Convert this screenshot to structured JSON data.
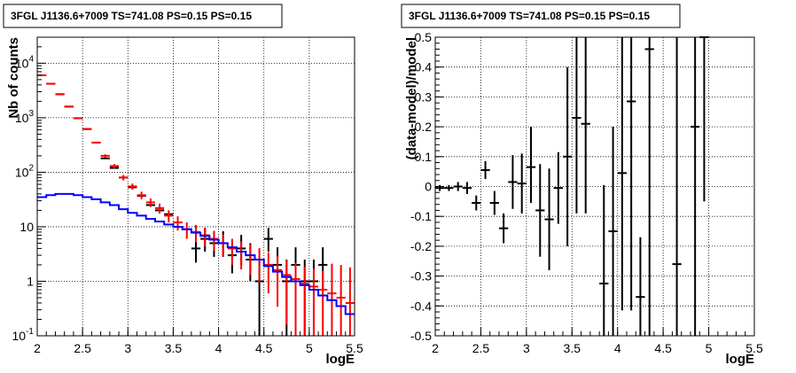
{
  "chart_data": [
    {
      "type": "scatter",
      "title": "3FGL J1136.6+7009 TS=741.08 PS=0.15 PS=0.15",
      "xlabel": "logE",
      "ylabel": "Nb of counts",
      "xlim": [
        2,
        5.5
      ],
      "ylim": [
        0.1,
        30000
      ],
      "yscale": "log",
      "grid": true,
      "x_ticks": [
        "2",
        "2.5",
        "3",
        "3.5",
        "4",
        "4.5",
        "5",
        "5.5"
      ],
      "y_ticks": [
        "10^{-1}",
        "1",
        "10",
        "10^{2}",
        "10^{3}",
        "10^{4}"
      ],
      "colors": {
        "data": "#000000",
        "model": "#ff0000",
        "background": "#0000ff"
      },
      "series": [
        {
          "key": "data",
          "x": [
            2.05,
            2.15,
            2.25,
            2.35,
            2.45,
            2.55,
            2.65,
            2.75,
            2.85,
            2.95,
            3.05,
            3.15,
            3.25,
            3.35,
            3.45,
            3.55,
            3.65,
            3.75,
            3.85,
            3.95,
            4.05,
            4.15,
            4.25,
            4.35,
            4.45,
            4.55,
            4.65,
            4.75,
            4.85,
            4.95,
            5.05,
            5.15,
            5.25
          ],
          "y": [
            6000,
            4200,
            2700,
            1600,
            980,
            620,
            350,
            180,
            120,
            80,
            53,
            37,
            25,
            20,
            17,
            12,
            9,
            4,
            6,
            5,
            5,
            3,
            4,
            2.5,
            1,
            6,
            2,
            1,
            2,
            1,
            1,
            2,
            0
          ],
          "err_low": [
            0,
            0,
            0,
            0,
            0,
            0,
            0,
            0,
            0,
            0,
            0,
            0,
            0,
            0,
            0,
            0,
            0,
            1.8,
            2.5,
            2.2,
            2.2,
            1.6,
            2,
            1.5,
            0.9,
            2.5,
            1.3,
            0.9,
            1.3,
            0.9,
            0.9,
            1.3,
            0
          ],
          "err_high": [
            0,
            0,
            0,
            0,
            0,
            0,
            0,
            0,
            0,
            0,
            0,
            0,
            0,
            0,
            0,
            0,
            0,
            3,
            3.5,
            3.3,
            3.3,
            2.8,
            3.1,
            2.5,
            1.5,
            3.5,
            2.2,
            1.5,
            2.2,
            1.5,
            1.5,
            2.2,
            0
          ]
        },
        {
          "key": "model",
          "x": [
            2.05,
            2.15,
            2.25,
            2.35,
            2.45,
            2.55,
            2.65,
            2.75,
            2.85,
            2.95,
            3.05,
            3.15,
            3.25,
            3.35,
            3.45,
            3.55,
            3.65,
            3.75,
            3.85,
            3.95,
            4.05,
            4.15,
            4.25,
            4.35,
            4.45,
            4.55,
            4.65,
            4.75,
            4.85,
            4.95,
            5.05,
            5.15,
            5.25,
            5.35,
            5.45
          ],
          "y": [
            6000,
            4200,
            2700,
            1600,
            980,
            620,
            350,
            200,
            130,
            80,
            55,
            38,
            28,
            22,
            16,
            12,
            9,
            8,
            7,
            6,
            5,
            4,
            3.5,
            3,
            2.5,
            2,
            1.6,
            1.3,
            1.1,
            0.9,
            0.8,
            0.7,
            0.6,
            0.5,
            0.4
          ],
          "err_low": [
            0,
            0,
            0,
            0,
            0,
            0,
            0,
            14,
            11,
            9,
            7,
            6,
            5,
            4.6,
            4,
            3.5,
            3,
            2.8,
            2.6,
            2.4,
            2.2,
            2,
            1.85,
            1.7,
            1.55,
            1.4,
            1.26,
            1.14,
            1.05,
            0.95,
            0.9,
            0.84,
            0.6,
            0.5,
            0.4
          ],
          "err_high": [
            0,
            0,
            0,
            0,
            0,
            0,
            0,
            14,
            11,
            9,
            7,
            6,
            5,
            4.6,
            4,
            3.5,
            3,
            2.8,
            2.6,
            2.4,
            2.2,
            2,
            1.85,
            1.7,
            1.55,
            1.4,
            1.26,
            1.14,
            1.05,
            0.95,
            0.9,
            0.84,
            1.5,
            1.5,
            1.4
          ]
        },
        {
          "key": "background",
          "x": [
            2.0,
            2.1,
            2.2,
            2.3,
            2.4,
            2.5,
            2.6,
            2.7,
            2.8,
            2.9,
            3.0,
            3.1,
            3.2,
            3.3,
            3.4,
            3.5,
            3.6,
            3.7,
            3.8,
            3.9,
            4.0,
            4.1,
            4.2,
            4.3,
            4.4,
            4.5,
            4.6,
            4.7,
            4.8,
            4.9,
            5.0,
            5.1,
            5.2,
            5.3,
            5.4,
            5.5
          ],
          "y": [
            35,
            38,
            40,
            40,
            38,
            35,
            32,
            28,
            25,
            21,
            18,
            16,
            14,
            12.5,
            11,
            10,
            9,
            7.8,
            6.8,
            5.8,
            5,
            4.2,
            3.5,
            3,
            2.5,
            1.9,
            1.5,
            1.2,
            1,
            0.85,
            0.7,
            0.55,
            0.45,
            0.35,
            0.25,
            0.22
          ]
        }
      ]
    },
    {
      "type": "scatter",
      "title": "3FGL J1136.6+7009 TS=741.08 PS=0.15 PS=0.15",
      "xlabel": "logE",
      "ylabel": "(data-model)/model",
      "xlim": [
        2,
        5.5
      ],
      "ylim": [
        -0.5,
        0.5
      ],
      "grid": true,
      "x_ticks": [
        "2",
        "2.5",
        "3",
        "3.5",
        "4",
        "4.5",
        "5",
        "5.5"
      ],
      "y_ticks": [
        "-0.5",
        "-0.4",
        "-0.3",
        "-0.2",
        "-0.1",
        "0",
        "0.1",
        "0.2",
        "0.3",
        "0.4",
        "0.5"
      ],
      "colors": {
        "data": "#000000"
      },
      "series": [
        {
          "key": "residual",
          "x": [
            2.05,
            2.15,
            2.25,
            2.35,
            2.45,
            2.55,
            2.65,
            2.75,
            2.85,
            2.95,
            3.05,
            3.15,
            3.25,
            3.35,
            3.45,
            3.55,
            3.65,
            3.85,
            3.95,
            4.05,
            4.15,
            4.25,
            4.35,
            4.65,
            4.85,
            4.95
          ],
          "y": [
            -0.005,
            -0.005,
            0.0,
            -0.005,
            -0.055,
            0.055,
            -0.055,
            -0.14,
            0.015,
            0.01,
            0.065,
            -0.08,
            -0.11,
            -0.005,
            0.1,
            0.23,
            0.21,
            -0.325,
            -0.15,
            0.045,
            0.285,
            -0.37,
            0.46,
            -0.26,
            0.2,
            0.5
          ],
          "err_low": [
            0.01,
            0.01,
            0.015,
            0.02,
            0.025,
            0.03,
            0.04,
            0.05,
            0.09,
            0.1,
            0.12,
            0.155,
            0.17,
            0.12,
            0.3,
            0.32,
            0.3,
            0.2,
            0.35,
            0.46,
            0.7,
            0.15,
            0.96,
            0.25,
            0.7,
            0.55
          ],
          "err_high": [
            0.01,
            0.01,
            0.015,
            0.02,
            0.025,
            0.03,
            0.04,
            0.05,
            0.09,
            0.1,
            0.135,
            0.155,
            0.17,
            0.12,
            0.3,
            0.3,
            0.3,
            0.33,
            0.35,
            0.46,
            0.7,
            0.2,
            0.04,
            0.76,
            0.3,
            0
          ]
        }
      ]
    }
  ]
}
